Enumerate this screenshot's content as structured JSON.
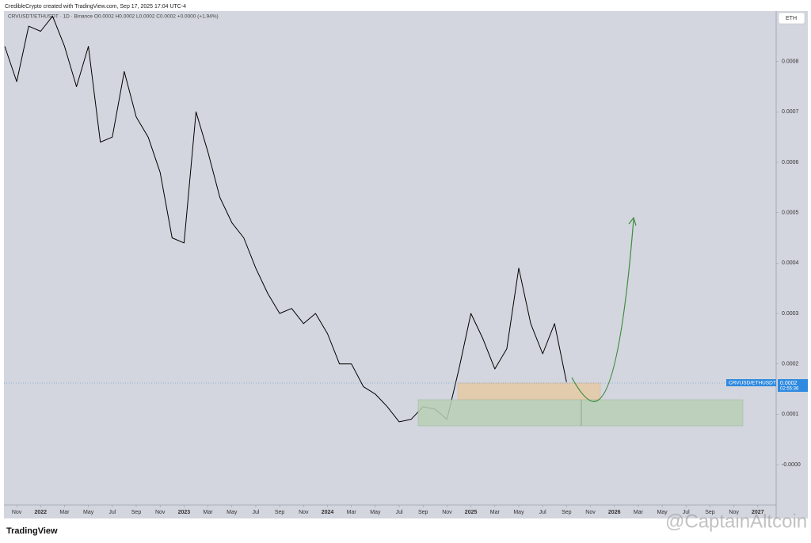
{
  "header": {
    "credit": "CredibleCrypto created with TradingView.com, Sep 17, 2025 17:04 UTC-4",
    "legend": "CRVUSDT/ETHUSDT · 1D · Binance  O0.0002 H0.0002 L0.0002 C0.0002 +0.0000 (+1.94%)",
    "currency_button": "ETH"
  },
  "footer": {
    "brand": "TradingView",
    "watermark": "@CaptainAltcoin"
  },
  "price_tag": {
    "symbol": "CRVUSD/ETHUSDT",
    "price": "0.0002",
    "countdown": "02:55:36"
  },
  "chart_data": {
    "type": "line",
    "x": [
      "2021-10",
      "2021-11",
      "2021-12",
      "2022-01",
      "2022-02",
      "2022-03",
      "2022-04",
      "2022-05",
      "2022-06",
      "2022-07",
      "2022-08",
      "2022-09",
      "2022-10",
      "2022-11",
      "2022-12",
      "2023-01",
      "2023-02",
      "2023-03",
      "2023-04",
      "2023-05",
      "2023-06",
      "2023-07",
      "2023-08",
      "2023-09",
      "2023-10",
      "2023-11",
      "2023-12",
      "2024-01",
      "2024-02",
      "2024-03",
      "2024-04",
      "2024-05",
      "2024-06",
      "2024-07",
      "2024-08",
      "2024-09",
      "2024-10",
      "2024-11",
      "2024-12",
      "2025-01",
      "2025-02",
      "2025-03",
      "2025-04",
      "2025-05",
      "2025-06",
      "2025-07",
      "2025-08",
      "2025-09"
    ],
    "series": [
      {
        "name": "CRVUSD/ETHUSDT",
        "color": "#000000",
        "values": [
          0.00083,
          0.00076,
          0.00087,
          0.00086,
          0.00089,
          0.00083,
          0.00075,
          0.00083,
          0.00064,
          0.00065,
          0.00078,
          0.00069,
          0.00065,
          0.00058,
          0.00045,
          0.00044,
          0.0007,
          0.00062,
          0.00053,
          0.00048,
          0.00045,
          0.00039,
          0.00034,
          0.0003,
          0.00031,
          0.00028,
          0.0003,
          0.00026,
          0.0002,
          0.0002,
          0.000155,
          0.00014,
          0.000115,
          8.5e-05,
          9e-05,
          0.000115,
          0.00011,
          9e-05,
          0.00019,
          0.0003,
          0.00025,
          0.00019,
          0.00023,
          0.00039,
          0.00028,
          0.00022,
          0.00028,
          0.000164
        ]
      }
    ],
    "xlim": [
      "2021-10",
      "2027-03"
    ],
    "xticks": [
      {
        "value": "2021-11",
        "label": "Nov"
      },
      {
        "value": "2022-01",
        "label": "2022"
      },
      {
        "value": "2022-03",
        "label": "Mar"
      },
      {
        "value": "2022-05",
        "label": "May"
      },
      {
        "value": "2022-07",
        "label": "Jul"
      },
      {
        "value": "2022-09",
        "label": "Sep"
      },
      {
        "value": "2022-11",
        "label": "Nov"
      },
      {
        "value": "2023-01",
        "label": "2023"
      },
      {
        "value": "2023-03",
        "label": "Mar"
      },
      {
        "value": "2023-05",
        "label": "May"
      },
      {
        "value": "2023-07",
        "label": "Jul"
      },
      {
        "value": "2023-09",
        "label": "Sep"
      },
      {
        "value": "2023-11",
        "label": "Nov"
      },
      {
        "value": "2024-01",
        "label": "2024"
      },
      {
        "value": "2024-03",
        "label": "Mar"
      },
      {
        "value": "2024-05",
        "label": "May"
      },
      {
        "value": "2024-07",
        "label": "Jul"
      },
      {
        "value": "2024-09",
        "label": "Sep"
      },
      {
        "value": "2024-11",
        "label": "Nov"
      },
      {
        "value": "2025-01",
        "label": "2025"
      },
      {
        "value": "2025-03",
        "label": "Mar"
      },
      {
        "value": "2025-05",
        "label": "May"
      },
      {
        "value": "2025-07",
        "label": "Jul"
      },
      {
        "value": "2025-09",
        "label": "Sep"
      },
      {
        "value": "2025-11",
        "label": "Nov"
      },
      {
        "value": "2026-01",
        "label": "2026"
      },
      {
        "value": "2026-03",
        "label": "Mar"
      },
      {
        "value": "2026-05",
        "label": "May"
      },
      {
        "value": "2026-07",
        "label": "Jul"
      },
      {
        "value": "2026-09",
        "label": "Sep"
      },
      {
        "value": "2026-11",
        "label": "Nov"
      },
      {
        "value": "2027-01",
        "label": "2027"
      }
    ],
    "ylim": [
      -8e-05,
      0.0009
    ],
    "yticks": [
      {
        "value": 0,
        "label": "-0.0000"
      },
      0.0001,
      0.0002,
      0.0003,
      0.0004,
      0.0005,
      0.0006,
      0.0007,
      0.0008
    ]
  }
}
